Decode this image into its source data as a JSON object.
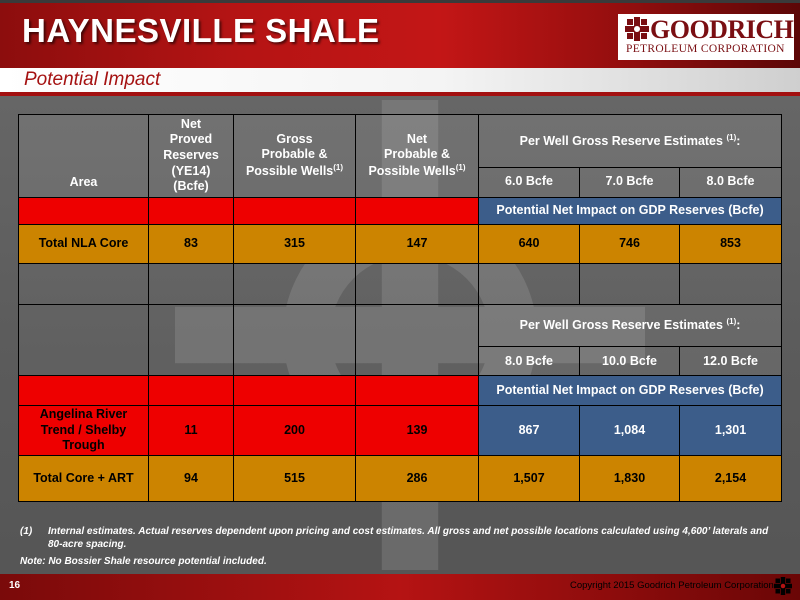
{
  "header": {
    "title": "HAYNESVILLE SHALE",
    "subtitle": "Potential Impact"
  },
  "logo": {
    "name": "GOODRICH",
    "subname": "PETROLEUM CORPORATION",
    "icon": "goodrich-cross-icon"
  },
  "colors": {
    "header_red": "#b51414",
    "subtitle_red": "#a51212",
    "row_red": "#ee0000",
    "row_gold": "#cc8400",
    "row_blue": "#3c5d8a"
  },
  "table": {
    "headers": {
      "area": "Area",
      "net_proved": [
        "Net",
        "Proved",
        "Reserves",
        "(YE14)",
        "(Bcfe)"
      ],
      "gross_prob": [
        "Gross",
        "Probable &",
        "Possible Wells"
      ],
      "net_prob": [
        "Net",
        "Probable &",
        "Possible Wells"
      ],
      "footnote_mark": "(1)",
      "per_well": "Per Well Gross Reserve Estimates",
      "per_well_suffix": ":",
      "est1": [
        "6.0 Bcfe",
        "7.0 Bcfe",
        "8.0 Bcfe"
      ],
      "est2": [
        "8.0 Bcfe",
        "10.0 Bcfe",
        "12.0 Bcfe"
      ]
    },
    "impact_label": "Potential Net Impact on GDP Reserves (Bcfe)",
    "rows": {
      "nla": {
        "area": "Total NLA Core",
        "proved": "83",
        "gross": "315",
        "net": "147",
        "e1": "640",
        "e2": "746",
        "e3": "853"
      },
      "art": {
        "area": "Angelina River Trend / Shelby Trough",
        "proved": "11",
        "gross": "200",
        "net": "139",
        "e1": "867",
        "e2": "1,084",
        "e3": "1,301"
      },
      "total": {
        "area": "Total Core + ART",
        "proved": "94",
        "gross": "515",
        "net": "286",
        "e1": "1,507",
        "e2": "1,830",
        "e3": "2,154"
      }
    }
  },
  "footnotes": {
    "num": "(1)",
    "text": "Internal estimates.  Actual reserves dependent upon pricing and cost estimates.  All gross and net possible locations calculated using 4,600’ laterals and 80-acre spacing.",
    "note": "Note:  No Bossier Shale resource potential included."
  },
  "footer": {
    "page": "16",
    "copyright": "Copyright 2015 Goodrich Petroleum Corporation",
    "icon": "goodrich-cross-icon"
  }
}
